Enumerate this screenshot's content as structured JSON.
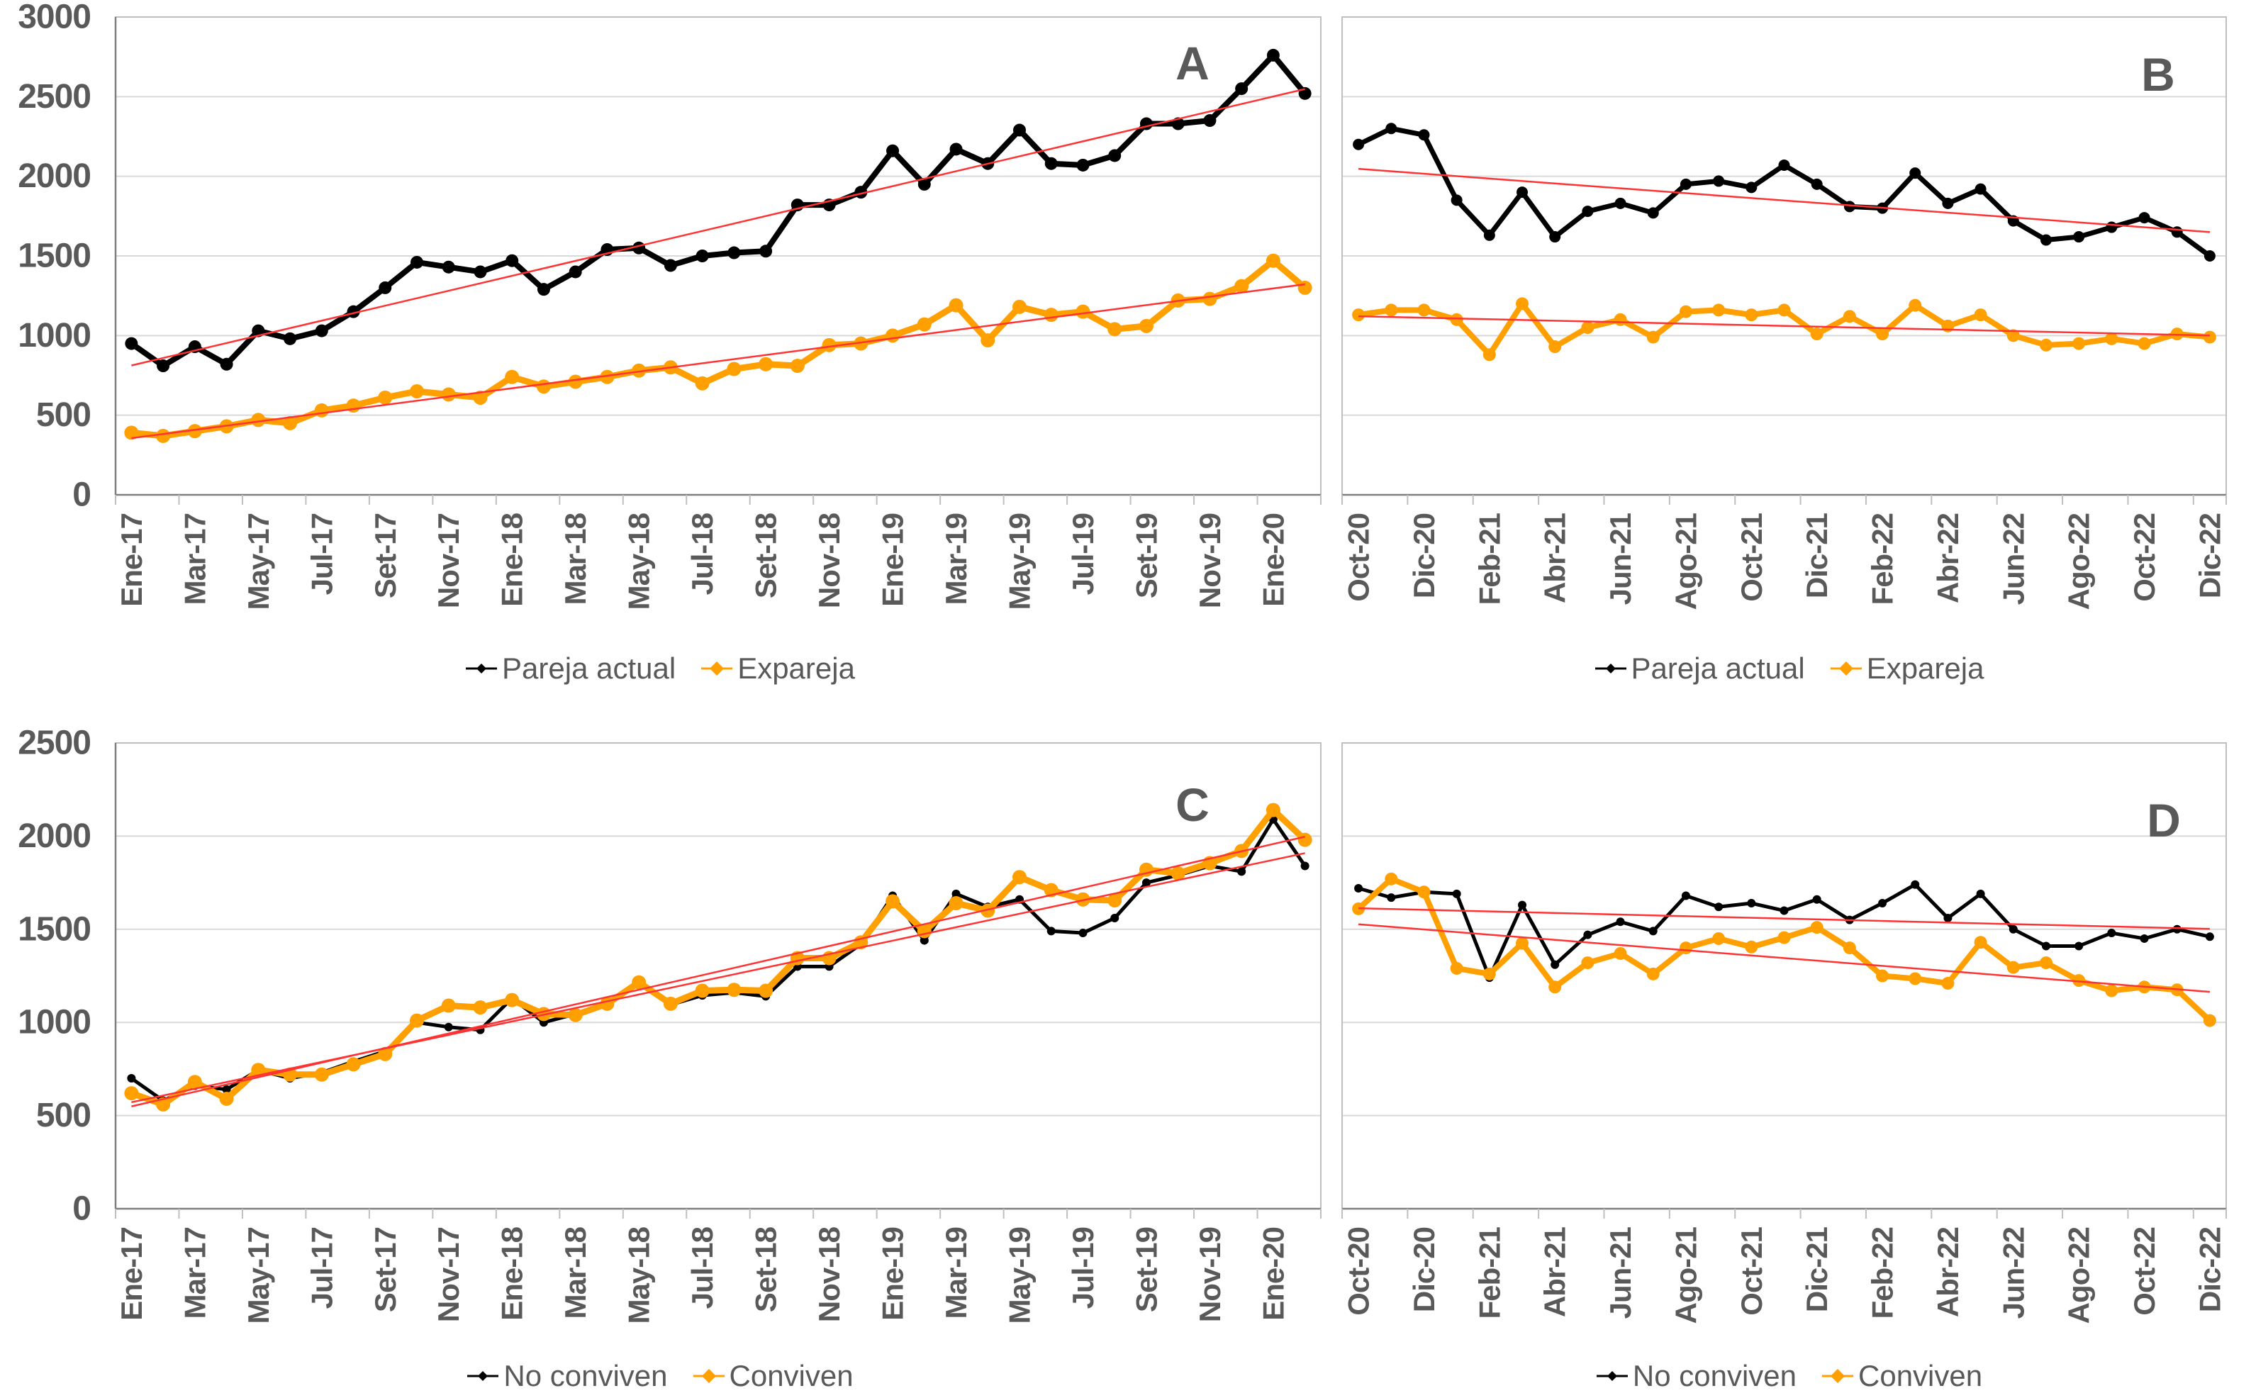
{
  "styles": {
    "background": "#ffffff",
    "series_black": "#000000",
    "series_orange": "#FFA000",
    "trend_color": "#FF3333",
    "grid_color": "#D9D9D9",
    "border_color": "#BFBFBF",
    "axis_line_color": "#7F7F7F",
    "tick_text_color": "#595959",
    "panel_letter_color": "#595959",
    "legend_text_color": "#595959"
  },
  "chart_data": [
    {
      "panel_label": "A",
      "type": "line",
      "grid": true,
      "legend_position": "bottom",
      "y_axis": {
        "min": 0,
        "max": 3000,
        "step": 500,
        "show_labels": true,
        "tick_labels": [
          "0",
          "500",
          "1000",
          "1500",
          "2000",
          "2500",
          "3000"
        ]
      },
      "x_axis": {
        "tick_every": 2
      },
      "categories": [
        "Ene-17",
        "Feb-17",
        "Mar-17",
        "Abr-17",
        "May-17",
        "Jun-17",
        "Jul-17",
        "Ago-17",
        "Set-17",
        "Oct-17",
        "Nov-17",
        "Dic-17",
        "Ene-18",
        "Feb-18",
        "Mar-18",
        "Abr-18",
        "May-18",
        "Jun-18",
        "Jul-18",
        "Ago-18",
        "Set-18",
        "Oct-18",
        "Nov-18",
        "Dic-18",
        "Ene-19",
        "Feb-19",
        "Mar-19",
        "Abr-19",
        "May-19",
        "Jun-19",
        "Jul-19",
        "Ago-19",
        "Set-19",
        "Oct-19",
        "Nov-19",
        "Dic-19",
        "Ene-20",
        "Feb-20"
      ],
      "series": [
        {
          "name": "Pareja actual",
          "color_key": "series_black",
          "values": [
            950,
            810,
            930,
            820,
            1030,
            980,
            1030,
            1150,
            1300,
            1460,
            1430,
            1400,
            1470,
            1290,
            1400,
            1540,
            1550,
            1440,
            1500,
            1520,
            1530,
            1820,
            1820,
            1900,
            2160,
            1950,
            2170,
            2080,
            2290,
            2080,
            2070,
            2130,
            2330,
            2330,
            2350,
            2550,
            2760,
            2520
          ],
          "trendline": true
        },
        {
          "name": "Expareja",
          "color_key": "series_orange",
          "values": [
            390,
            370,
            400,
            430,
            470,
            450,
            530,
            560,
            610,
            650,
            630,
            610,
            740,
            680,
            710,
            740,
            780,
            800,
            700,
            790,
            820,
            810,
            940,
            950,
            1000,
            1070,
            1190,
            970,
            1180,
            1130,
            1150,
            1040,
            1060,
            1220,
            1230,
            1310,
            1470,
            1300
          ],
          "trendline": true
        }
      ]
    },
    {
      "panel_label": "B",
      "type": "line",
      "grid": true,
      "legend_position": "bottom",
      "y_axis": {
        "min": 0,
        "max": 3000,
        "step": 500,
        "show_labels": false,
        "tick_labels": []
      },
      "x_axis": {
        "tick_every": 2
      },
      "categories": [
        "Oct-20",
        "Nov-20",
        "Dic-20",
        "Ene-21",
        "Feb-21",
        "Mar-21",
        "Abr-21",
        "May-21",
        "Jun-21",
        "Jul-21",
        "Ago-21",
        "Set-21",
        "Oct-21",
        "Nov-21",
        "Dic-21",
        "Ene-22",
        "Feb-22",
        "Mar-22",
        "Abr-22",
        "May-22",
        "Jun-22",
        "Jul-22",
        "Ago-22",
        "Set-22",
        "Oct-22",
        "Nov-22",
        "Dic-22"
      ],
      "series": [
        {
          "name": "Pareja actual",
          "color_key": "series_black",
          "values": [
            2200,
            2300,
            2260,
            1850,
            1630,
            1900,
            1620,
            1780,
            1830,
            1770,
            1950,
            1970,
            1930,
            2070,
            1950,
            1810,
            1800,
            2020,
            1830,
            1920,
            1720,
            1600,
            1620,
            1680,
            1740,
            1650,
            1500
          ],
          "trendline": true
        },
        {
          "name": "Expareja",
          "color_key": "series_orange",
          "values": [
            1130,
            1160,
            1160,
            1100,
            880,
            1200,
            930,
            1050,
            1100,
            990,
            1150,
            1160,
            1130,
            1160,
            1010,
            1120,
            1010,
            1190,
            1060,
            1130,
            1000,
            940,
            950,
            980,
            950,
            1010,
            990
          ],
          "trendline": true
        }
      ]
    },
    {
      "panel_label": "C",
      "type": "line",
      "grid": true,
      "legend_position": "bottom",
      "y_axis": {
        "min": 0,
        "max": 2500,
        "step": 500,
        "show_labels": true,
        "tick_labels": [
          "0",
          "500",
          "1000",
          "1500",
          "2000",
          "2500"
        ]
      },
      "x_axis": {
        "tick_every": 2
      },
      "categories": [
        "Ene-17",
        "Feb-17",
        "Mar-17",
        "Abr-17",
        "May-17",
        "Jun-17",
        "Jul-17",
        "Ago-17",
        "Set-17",
        "Oct-17",
        "Nov-17",
        "Dic-17",
        "Ene-18",
        "Feb-18",
        "Mar-18",
        "Abr-18",
        "May-18",
        "Jun-18",
        "Jul-18",
        "Ago-18",
        "Set-18",
        "Oct-18",
        "Nov-18",
        "Dic-18",
        "Ene-19",
        "Feb-19",
        "Mar-19",
        "Abr-19",
        "May-19",
        "Jun-19",
        "Jul-19",
        "Ago-19",
        "Set-19",
        "Oct-19",
        "Nov-19",
        "Dic-19",
        "Ene-20",
        "Feb-20"
      ],
      "series": [
        {
          "name": "No conviven",
          "color_key": "series_black",
          "values": [
            700,
            580,
            660,
            640,
            745,
            700,
            730,
            790,
            845,
            1000,
            975,
            960,
            1130,
            1000,
            1045,
            1110,
            1210,
            1095,
            1145,
            1160,
            1140,
            1300,
            1300,
            1420,
            1680,
            1440,
            1690,
            1620,
            1660,
            1490,
            1480,
            1560,
            1750,
            1790,
            1840,
            1810,
            2090,
            1840
          ],
          "trendline": true
        },
        {
          "name": "Conviven",
          "color_key": "series_orange",
          "values": [
            620,
            560,
            680,
            590,
            745,
            720,
            720,
            775,
            830,
            1010,
            1090,
            1080,
            1120,
            1045,
            1040,
            1100,
            1215,
            1100,
            1170,
            1175,
            1170,
            1345,
            1345,
            1430,
            1650,
            1490,
            1640,
            1600,
            1780,
            1710,
            1660,
            1655,
            1820,
            1800,
            1855,
            1920,
            2140,
            1980
          ],
          "trendline": true
        }
      ]
    },
    {
      "panel_label": "D",
      "type": "line",
      "grid": true,
      "legend_position": "bottom",
      "y_axis": {
        "min": 0,
        "max": 2500,
        "step": 500,
        "show_labels": false,
        "tick_labels": []
      },
      "x_axis": {
        "tick_every": 2
      },
      "categories": [
        "Oct-20",
        "Nov-20",
        "Dic-20",
        "Ene-21",
        "Feb-21",
        "Mar-21",
        "Abr-21",
        "May-21",
        "Jun-21",
        "Jul-21",
        "Ago-21",
        "Set-21",
        "Oct-21",
        "Nov-21",
        "Dic-21",
        "Ene-22",
        "Feb-22",
        "Mar-22",
        "Abr-22",
        "May-22",
        "Jun-22",
        "Jul-22",
        "Ago-22",
        "Set-22",
        "Oct-22",
        "Nov-22",
        "Dic-22"
      ],
      "series": [
        {
          "name": "No conviven",
          "color_key": "series_black",
          "values": [
            1720,
            1670,
            1700,
            1690,
            1240,
            1630,
            1310,
            1470,
            1540,
            1490,
            1680,
            1620,
            1640,
            1600,
            1660,
            1550,
            1640,
            1740,
            1560,
            1690,
            1500,
            1410,
            1410,
            1480,
            1450,
            1500,
            1460
          ],
          "trendline": true
        },
        {
          "name": "Conviven",
          "color_key": "series_orange",
          "values": [
            1610,
            1770,
            1700,
            1290,
            1260,
            1425,
            1190,
            1320,
            1370,
            1260,
            1400,
            1450,
            1405,
            1455,
            1510,
            1400,
            1250,
            1235,
            1210,
            1430,
            1295,
            1320,
            1225,
            1170,
            1190,
            1175,
            1010
          ],
          "trendline": true
        }
      ]
    }
  ]
}
